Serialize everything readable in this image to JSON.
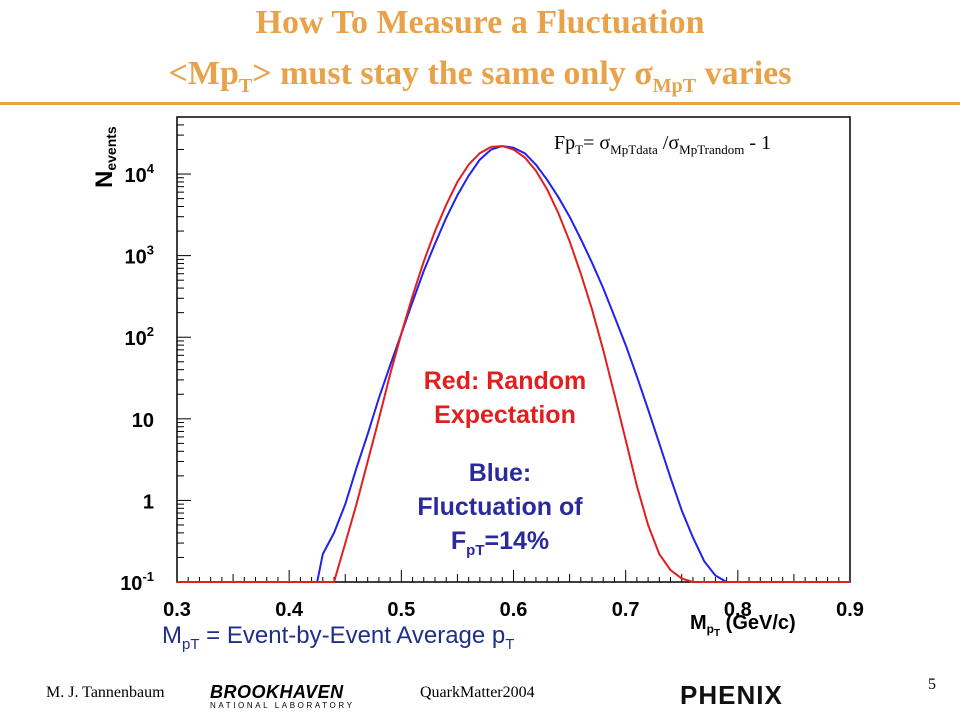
{
  "slide": {
    "title_line1": "How To Measure a Fluctuation",
    "title_line2_pre": "<Mp",
    "title_line2_sub": "T",
    "title_line2_mid": "> must stay the same only ",
    "title_line2_sigma": "σ",
    "title_line2_sigma_sub": "MpT",
    "title_line2_post": " varies",
    "title_color": "#e8a24a"
  },
  "formula": {
    "lhs": "Fp",
    "lhs_sub": "T",
    "eq": "= ",
    "sigma1": "σ",
    "sub1": "MpTdata",
    "slash": " /",
    "sigma2": "σ",
    "sub2": "MpTrandom",
    "tail": " - 1"
  },
  "annotations": {
    "red_line1": "Red: Random",
    "red_line2": "Expectation",
    "blue_line1": "Blue:",
    "blue_line2": "Fluctuation of",
    "blue_line3_pre": "F",
    "blue_line3_sub": "pT",
    "blue_line3_post": "=14%"
  },
  "caption": {
    "pre": "M",
    "sub1": "pT",
    "mid": " = Event-by-Event Average p",
    "sub2": "T"
  },
  "footer": {
    "author": "M. J. Tannenbaum",
    "bnl_main": "BROOKHAVEN",
    "bnl_sub": "NATIONAL LABORATORY",
    "conference": "QuarkMatter2004",
    "phenix": "PHENIX",
    "page": "5"
  },
  "chart_data": {
    "type": "line",
    "title": "",
    "xlabel": "M_pT (GeV/c)",
    "ylabel": "N_events",
    "xlim": [
      0.3,
      0.9
    ],
    "ylim": [
      0.1,
      50000
    ],
    "yscale": "log",
    "x_ticks": [
      "0.3",
      "0.4",
      "0.5",
      "0.6",
      "0.7",
      "0.8",
      "0.9"
    ],
    "y_ticks": [
      "10^-1",
      "1",
      "10",
      "10^2",
      "10^3",
      "10^4"
    ],
    "grid": false,
    "series": [
      {
        "name": "Blue: Fluctuation of FpT=14%",
        "color": "#2222ee",
        "x": [
          0.3,
          0.425,
          0.43,
          0.44,
          0.45,
          0.46,
          0.47,
          0.48,
          0.49,
          0.5,
          0.51,
          0.52,
          0.53,
          0.54,
          0.55,
          0.56,
          0.57,
          0.58,
          0.59,
          0.6,
          0.61,
          0.62,
          0.63,
          0.64,
          0.65,
          0.66,
          0.67,
          0.68,
          0.69,
          0.7,
          0.71,
          0.72,
          0.73,
          0.74,
          0.75,
          0.76,
          0.77,
          0.78,
          0.79,
          0.8,
          0.9
        ],
        "y": [
          0.1,
          0.1,
          0.22,
          0.4,
          0.9,
          2.5,
          6.5,
          18,
          45,
          110,
          270,
          650,
          1400,
          2900,
          5500,
          9500,
          15000,
          20000,
          22000,
          21000,
          18000,
          13000,
          8500,
          5200,
          3000,
          1600,
          820,
          400,
          180,
          80,
          33,
          13,
          5,
          1.9,
          0.75,
          0.35,
          0.18,
          0.12,
          0.1,
          0.1,
          0.1
        ]
      },
      {
        "name": "Red: Random Expectation",
        "color": "#e31e1e",
        "x": [
          0.3,
          0.44,
          0.45,
          0.46,
          0.47,
          0.48,
          0.49,
          0.5,
          0.51,
          0.52,
          0.53,
          0.54,
          0.55,
          0.56,
          0.57,
          0.58,
          0.59,
          0.6,
          0.61,
          0.62,
          0.63,
          0.64,
          0.65,
          0.66,
          0.67,
          0.68,
          0.69,
          0.7,
          0.71,
          0.72,
          0.73,
          0.74,
          0.75,
          0.76,
          0.77,
          0.9
        ],
        "y": [
          0.1,
          0.1,
          0.3,
          0.9,
          3,
          10,
          35,
          110,
          320,
          850,
          2000,
          4200,
          8000,
          13000,
          18000,
          21500,
          22000,
          20000,
          16000,
          11000,
          6500,
          3300,
          1500,
          600,
          220,
          70,
          20,
          5.5,
          1.5,
          0.5,
          0.22,
          0.14,
          0.11,
          0.1,
          0.1,
          0.1
        ]
      }
    ]
  }
}
